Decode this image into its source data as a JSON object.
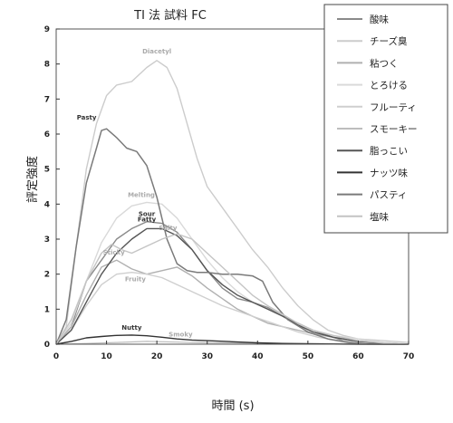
{
  "chart_data": {
    "type": "line",
    "title": "TI 法 試料 FC",
    "xlabel": "時間 (s)",
    "ylabel": "評定強度",
    "xlim": [
      0,
      70
    ],
    "ylim": [
      0,
      9
    ],
    "x_ticks": [
      0,
      10,
      20,
      30,
      40,
      50,
      60,
      70
    ],
    "y_ticks": [
      0,
      1,
      2,
      3,
      4,
      5,
      6,
      7,
      8,
      9
    ],
    "grid": false,
    "legend_position": "top-right",
    "series": [
      {
        "name": "酸味",
        "label": "Sour",
        "color": "#8a8a8a",
        "width": 1.4,
        "points": [
          [
            0,
            0
          ],
          [
            3,
            0.5
          ],
          [
            6,
            1.8
          ],
          [
            9,
            2.4
          ],
          [
            12,
            3.0
          ],
          [
            15,
            3.3
          ],
          [
            18,
            3.5
          ],
          [
            21,
            3.45
          ],
          [
            24,
            3.2
          ],
          [
            27,
            2.7
          ],
          [
            30,
            2.1
          ],
          [
            33,
            1.6
          ],
          [
            36,
            1.3
          ],
          [
            39,
            1.2
          ],
          [
            42,
            1.05
          ],
          [
            45,
            0.8
          ],
          [
            48,
            0.6
          ],
          [
            51,
            0.4
          ],
          [
            54,
            0.25
          ],
          [
            57,
            0.1
          ],
          [
            60,
            0.05
          ],
          [
            65,
            0
          ],
          [
            70,
            0
          ]
        ]
      },
      {
        "name": "チーズ臭",
        "label": "Diacetyl",
        "color": "#cccccc",
        "width": 1.4,
        "points": [
          [
            0,
            0
          ],
          [
            2,
            0.5
          ],
          [
            4,
            2.8
          ],
          [
            6,
            5.0
          ],
          [
            8,
            6.3
          ],
          [
            10,
            7.1
          ],
          [
            12,
            7.4
          ],
          [
            15,
            7.5
          ],
          [
            18,
            7.9
          ],
          [
            20,
            8.1
          ],
          [
            22,
            7.9
          ],
          [
            24,
            7.3
          ],
          [
            26,
            6.3
          ],
          [
            28,
            5.3
          ],
          [
            30,
            4.5
          ],
          [
            33,
            3.9
          ],
          [
            36,
            3.3
          ],
          [
            39,
            2.7
          ],
          [
            42,
            2.2
          ],
          [
            45,
            1.6
          ],
          [
            48,
            1.1
          ],
          [
            51,
            0.7
          ],
          [
            54,
            0.4
          ],
          [
            57,
            0.25
          ],
          [
            60,
            0.15
          ],
          [
            65,
            0.1
          ],
          [
            70,
            0.05
          ]
        ]
      },
      {
        "name": "粘つく",
        "label": "Sticky",
        "color": "#b0b0b0",
        "width": 1.4,
        "points": [
          [
            0,
            0
          ],
          [
            3,
            0.5
          ],
          [
            6,
            1.4
          ],
          [
            9,
            2.2
          ],
          [
            12,
            2.4
          ],
          [
            15,
            2.15
          ],
          [
            18,
            2.0
          ],
          [
            21,
            2.1
          ],
          [
            24,
            2.2
          ],
          [
            27,
            1.95
          ],
          [
            30,
            1.6
          ],
          [
            33,
            1.3
          ],
          [
            36,
            1.0
          ],
          [
            39,
            0.8
          ],
          [
            42,
            0.6
          ],
          [
            45,
            0.5
          ],
          [
            48,
            0.4
          ],
          [
            51,
            0.3
          ],
          [
            55,
            0.2
          ],
          [
            60,
            0.1
          ],
          [
            65,
            0.05
          ],
          [
            70,
            0
          ]
        ]
      },
      {
        "name": "とろける",
        "label": "Melting",
        "color": "#d9d9d9",
        "width": 1.4,
        "points": [
          [
            0,
            0
          ],
          [
            3,
            0.6
          ],
          [
            6,
            1.8
          ],
          [
            9,
            2.9
          ],
          [
            12,
            3.6
          ],
          [
            15,
            3.95
          ],
          [
            18,
            4.05
          ],
          [
            21,
            4.0
          ],
          [
            24,
            3.6
          ],
          [
            27,
            3.0
          ],
          [
            30,
            2.4
          ],
          [
            33,
            1.9
          ],
          [
            36,
            1.5
          ],
          [
            39,
            1.2
          ],
          [
            42,
            1.0
          ],
          [
            45,
            0.8
          ],
          [
            48,
            0.55
          ],
          [
            51,
            0.4
          ],
          [
            55,
            0.25
          ],
          [
            60,
            0.15
          ],
          [
            65,
            0.05
          ],
          [
            70,
            0
          ]
        ]
      },
      {
        "name": "フルーティ",
        "label": "Fruity",
        "color": "#cfcfcf",
        "width": 1.4,
        "points": [
          [
            0,
            0
          ],
          [
            3,
            0.4
          ],
          [
            6,
            1.1
          ],
          [
            9,
            1.7
          ],
          [
            12,
            2.0
          ],
          [
            15,
            2.05
          ],
          [
            18,
            2.0
          ],
          [
            21,
            1.9
          ],
          [
            24,
            1.7
          ],
          [
            27,
            1.5
          ],
          [
            30,
            1.3
          ],
          [
            33,
            1.1
          ],
          [
            36,
            0.95
          ],
          [
            39,
            0.8
          ],
          [
            42,
            0.65
          ],
          [
            45,
            0.5
          ],
          [
            48,
            0.35
          ],
          [
            52,
            0.2
          ],
          [
            56,
            0.1
          ],
          [
            60,
            0.05
          ],
          [
            70,
            0
          ]
        ]
      },
      {
        "name": "スモーキー",
        "label": "Smoky",
        "color": "#bdbdbd",
        "width": 1.2,
        "points": [
          [
            0,
            0
          ],
          [
            6,
            0.02
          ],
          [
            12,
            0.05
          ],
          [
            18,
            0.08
          ],
          [
            24,
            0.06
          ],
          [
            30,
            0.04
          ],
          [
            40,
            0.03
          ],
          [
            50,
            0.02
          ],
          [
            60,
            0.01
          ],
          [
            70,
            0
          ]
        ]
      },
      {
        "name": "脂っこい",
        "label": "Fatty",
        "color": "#555555",
        "width": 1.4,
        "points": [
          [
            0,
            0
          ],
          [
            3,
            0.4
          ],
          [
            6,
            1.2
          ],
          [
            9,
            2.0
          ],
          [
            12,
            2.6
          ],
          [
            15,
            3.0
          ],
          [
            18,
            3.3
          ],
          [
            21,
            3.3
          ],
          [
            24,
            3.1
          ],
          [
            27,
            2.7
          ],
          [
            30,
            2.1
          ],
          [
            33,
            1.7
          ],
          [
            36,
            1.4
          ],
          [
            39,
            1.2
          ],
          [
            42,
            1.0
          ],
          [
            45,
            0.8
          ],
          [
            48,
            0.55
          ],
          [
            51,
            0.35
          ],
          [
            55,
            0.2
          ],
          [
            60,
            0.08
          ],
          [
            65,
            0.02
          ],
          [
            70,
            0
          ]
        ]
      },
      {
        "name": "ナッツ味",
        "label": "Nutty",
        "color": "#333333",
        "width": 1.4,
        "points": [
          [
            0,
            0
          ],
          [
            3,
            0.08
          ],
          [
            6,
            0.18
          ],
          [
            9,
            0.22
          ],
          [
            12,
            0.25
          ],
          [
            15,
            0.26
          ],
          [
            18,
            0.24
          ],
          [
            21,
            0.2
          ],
          [
            24,
            0.15
          ],
          [
            27,
            0.12
          ],
          [
            30,
            0.1
          ],
          [
            35,
            0.07
          ],
          [
            40,
            0.04
          ],
          [
            45,
            0.02
          ],
          [
            50,
            0.01
          ],
          [
            60,
            0
          ],
          [
            70,
            0
          ]
        ]
      },
      {
        "name": "パスティ",
        "label": "Pasty",
        "color": "#7a7a7a",
        "width": 1.5,
        "points": [
          [
            0,
            0
          ],
          [
            2,
            0.7
          ],
          [
            4,
            2.8
          ],
          [
            6,
            4.6
          ],
          [
            8,
            5.6
          ],
          [
            9,
            6.1
          ],
          [
            10,
            6.15
          ],
          [
            12,
            5.9
          ],
          [
            14,
            5.6
          ],
          [
            16,
            5.5
          ],
          [
            18,
            5.1
          ],
          [
            20,
            4.2
          ],
          [
            22,
            3.0
          ],
          [
            24,
            2.3
          ],
          [
            26,
            2.1
          ],
          [
            28,
            2.05
          ],
          [
            30,
            2.05
          ],
          [
            33,
            2.0
          ],
          [
            36,
            2.0
          ],
          [
            39,
            1.95
          ],
          [
            41,
            1.8
          ],
          [
            43,
            1.2
          ],
          [
            46,
            0.7
          ],
          [
            50,
            0.35
          ],
          [
            54,
            0.15
          ],
          [
            58,
            0.05
          ],
          [
            62,
            0
          ],
          [
            70,
            0
          ]
        ]
      },
      {
        "name": "塩味",
        "label": "Salty",
        "color": "#c4c4c4",
        "width": 1.4,
        "points": [
          [
            0,
            0
          ],
          [
            3,
            0.7
          ],
          [
            6,
            1.8
          ],
          [
            9,
            2.6
          ],
          [
            11,
            2.85
          ],
          [
            13,
            2.7
          ],
          [
            15,
            2.6
          ],
          [
            18,
            2.8
          ],
          [
            21,
            3.0
          ],
          [
            24,
            3.15
          ],
          [
            27,
            3.0
          ],
          [
            30,
            2.6
          ],
          [
            33,
            2.2
          ],
          [
            36,
            1.8
          ],
          [
            39,
            1.4
          ],
          [
            42,
            1.1
          ],
          [
            45,
            0.85
          ],
          [
            48,
            0.6
          ],
          [
            51,
            0.4
          ],
          [
            55,
            0.25
          ],
          [
            60,
            0.1
          ],
          [
            65,
            0.03
          ],
          [
            70,
            0
          ]
        ]
      }
    ]
  }
}
